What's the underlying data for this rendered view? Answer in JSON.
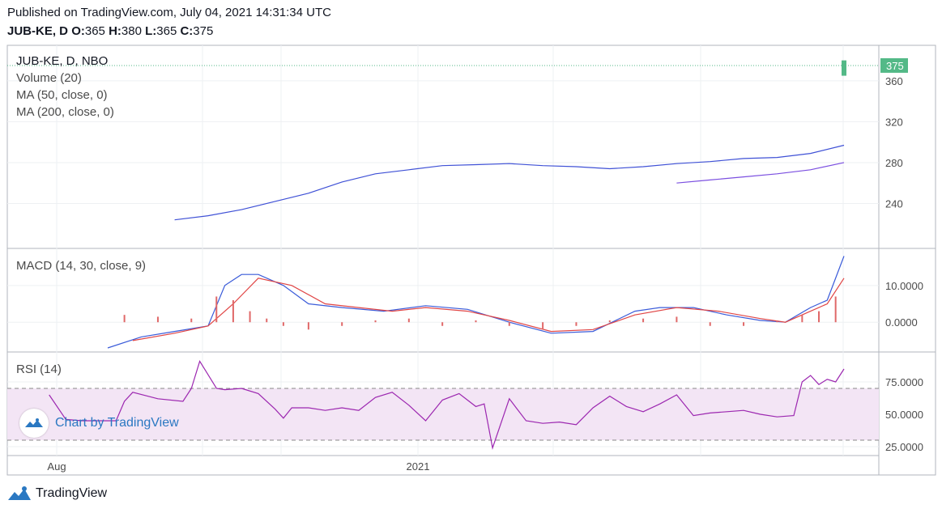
{
  "header": {
    "published": "Published on TradingView.com, July 04, 2021 14:31:34 UTC",
    "symbol": "JUB-KE, D",
    "o_label": "O:",
    "o_value": "365",
    "h_label": "H:",
    "h_value": "380",
    "l_label": "L:",
    "l_value": "365",
    "c_label": "C:",
    "c_value": "375"
  },
  "legend": {
    "symbol": "JUB-KE, D, NBO",
    "volume": "Volume (20)",
    "ma50": "MA (50, close, 0)",
    "ma200": "MA (200, close, 0)",
    "macd": "MACD (14, 30, close, 9)",
    "rsi": "RSI (14)"
  },
  "watermark": {
    "text": "Chart by TradingView",
    "icon": "tradingview-logo-icon"
  },
  "footer": {
    "brand": "TradingView",
    "icon": "tradingview-logo-icon"
  },
  "colors": {
    "up": "#53b987",
    "down": "#eb4d5c",
    "ma50": "#3f51d6",
    "ma200": "#7b4fe0",
    "macd": "#3a5bd9",
    "signal": "#e04545",
    "hist": "#e06868",
    "rsi": "#9c27b0",
    "rsi_band": "#f3e5f5",
    "last_price": "#53b987"
  },
  "chart_data": [
    {
      "type": "candlestick",
      "title": "JUB-KE, D, NBO",
      "x_ticks": [
        "Aug",
        "2021"
      ],
      "y_ticks": [
        240,
        280,
        320,
        360
      ],
      "ylim": [
        200,
        390
      ],
      "last_price_label": "375",
      "last_price": 375,
      "series": [
        {
          "name": "MA (50, close, 0)",
          "x": [
            0.2,
            0.24,
            0.28,
            0.32,
            0.36,
            0.4,
            0.44,
            0.48,
            0.52,
            0.56,
            0.6,
            0.64,
            0.68,
            0.72,
            0.76,
            0.8,
            0.84,
            0.88,
            0.92,
            0.96,
            1.0
          ],
          "values": [
            224,
            228,
            234,
            242,
            250,
            261,
            269,
            273,
            277,
            278,
            279,
            277,
            276,
            274,
            276,
            279,
            281,
            284,
            285,
            289,
            297
          ]
        },
        {
          "name": "MA (200, close, 0)",
          "x": [
            0.8,
            0.84,
            0.88,
            0.92,
            0.96,
            1.0
          ],
          "values": [
            260,
            263,
            266,
            269,
            273,
            280
          ]
        }
      ]
    },
    {
      "type": "line",
      "title": "MACD (14, 30, close, 9)",
      "y_ticks": [
        0,
        10
      ],
      "ylim": [
        -7,
        19
      ],
      "series": [
        {
          "name": "MACD",
          "x": [
            0.12,
            0.16,
            0.2,
            0.24,
            0.26,
            0.28,
            0.3,
            0.33,
            0.36,
            0.4,
            0.45,
            0.5,
            0.55,
            0.6,
            0.65,
            0.7,
            0.75,
            0.78,
            0.82,
            0.86,
            0.9,
            0.93,
            0.96,
            0.98,
            1.0
          ],
          "values": [
            -7,
            -4,
            -2.5,
            -1,
            10,
            13,
            13,
            10,
            5,
            4,
            3,
            4.5,
            3.5,
            0,
            -3,
            -2.5,
            3,
            4,
            4,
            2,
            0.5,
            0,
            4,
            6,
            18
          ]
        },
        {
          "name": "Signal",
          "x": [
            0.15,
            0.2,
            0.24,
            0.27,
            0.3,
            0.34,
            0.38,
            0.42,
            0.46,
            0.5,
            0.55,
            0.6,
            0.65,
            0.7,
            0.75,
            0.8,
            0.85,
            0.9,
            0.93,
            0.96,
            0.98,
            1.0
          ],
          "values": [
            -5,
            -3,
            -1,
            5,
            12,
            10,
            5,
            4,
            3,
            4,
            3,
            0.5,
            -2.5,
            -2,
            2,
            4,
            3,
            1,
            0,
            3,
            5,
            12
          ]
        },
        {
          "name": "Histogram",
          "x": [
            0.14,
            0.18,
            0.22,
            0.25,
            0.27,
            0.29,
            0.31,
            0.33,
            0.36,
            0.4,
            0.44,
            0.48,
            0.52,
            0.56,
            0.6,
            0.64,
            0.68,
            0.72,
            0.76,
            0.8,
            0.84,
            0.88,
            0.92,
            0.95,
            0.97,
            0.99
          ],
          "values": [
            2,
            1.5,
            1,
            7,
            6,
            3,
            1,
            -1,
            -2,
            -1,
            0.5,
            1,
            -1,
            0.5,
            -1,
            -2,
            -1,
            0.5,
            1,
            1.5,
            -1,
            -1,
            0.5,
            2,
            3,
            7
          ]
        }
      ]
    },
    {
      "type": "line",
      "title": "RSI (14)",
      "y_ticks": [
        25,
        50,
        75
      ],
      "ylim": [
        20,
        95
      ],
      "bands": [
        30,
        70
      ],
      "series": [
        {
          "name": "RSI",
          "x": [
            0.05,
            0.07,
            0.09,
            0.13,
            0.14,
            0.15,
            0.18,
            0.21,
            0.22,
            0.23,
            0.25,
            0.26,
            0.28,
            0.3,
            0.32,
            0.33,
            0.34,
            0.36,
            0.38,
            0.4,
            0.42,
            0.44,
            0.46,
            0.48,
            0.5,
            0.52,
            0.54,
            0.56,
            0.57,
            0.58,
            0.6,
            0.62,
            0.64,
            0.66,
            0.68,
            0.7,
            0.72,
            0.74,
            0.76,
            0.78,
            0.8,
            0.82,
            0.84,
            0.86,
            0.88,
            0.9,
            0.92,
            0.94,
            0.95,
            0.96,
            0.97,
            0.98,
            0.99,
            1.0
          ],
          "values": [
            65,
            46,
            45,
            45,
            60,
            67,
            62,
            60,
            70,
            91,
            70,
            69,
            70,
            66,
            54,
            47,
            55,
            55,
            53,
            55,
            53,
            63,
            67,
            57,
            45,
            61,
            66,
            56,
            58,
            24,
            62,
            45,
            43,
            44,
            42,
            55,
            64,
            56,
            52,
            58,
            65,
            49,
            51,
            52,
            53,
            50,
            48,
            49,
            75,
            80,
            73,
            77,
            75,
            85
          ]
        }
      ]
    }
  ]
}
